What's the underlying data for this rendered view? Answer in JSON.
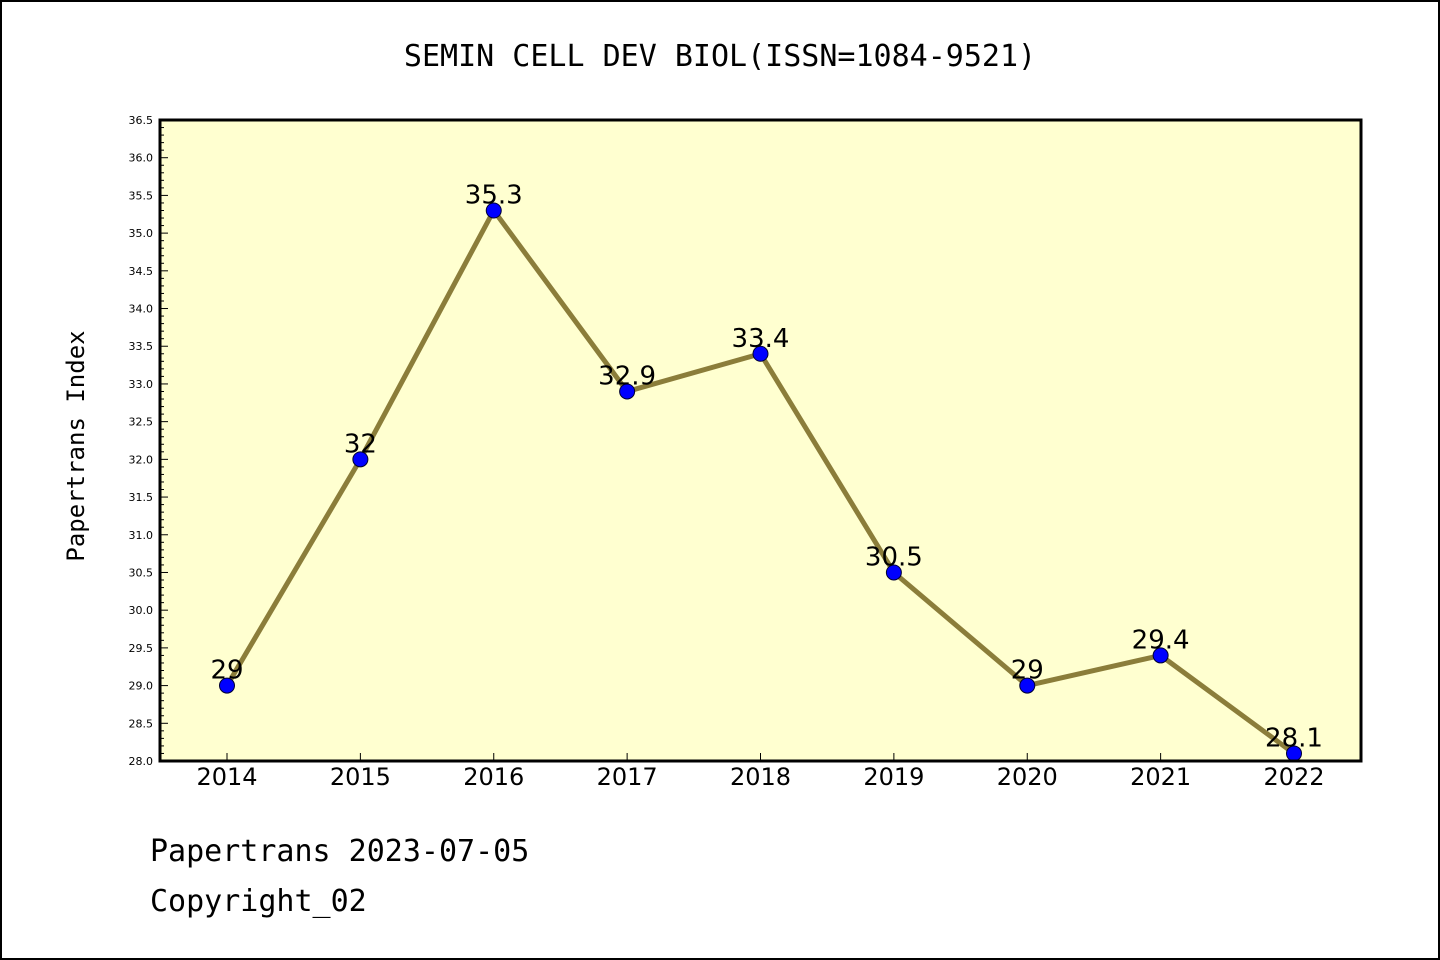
{
  "chart_data": {
    "type": "line",
    "title": "SEMIN CELL DEV BIOL(ISSN=1084-9521)",
    "xlabel": "",
    "ylabel": "Papertrans Index",
    "x": [
      "2014",
      "2015",
      "2016",
      "2017",
      "2018",
      "2019",
      "2020",
      "2021",
      "2022"
    ],
    "series": [
      {
        "values": [
          29,
          32,
          35.3,
          32.9,
          33.4,
          30.5,
          29,
          29.4,
          28.1
        ],
        "labels": [
          "29",
          "32",
          "35.3",
          "32.9",
          "33.4",
          "30.5",
          "29",
          "29.4",
          "28.1"
        ]
      }
    ],
    "ylim": [
      28.0,
      36.5
    ],
    "yticks": [
      "28.0",
      "28.5",
      "29.0",
      "29.5",
      "30.0",
      "30.5",
      "31.0",
      "31.5",
      "32.0",
      "32.5",
      "33.0",
      "33.5",
      "34.0",
      "34.5",
      "35.0",
      "35.5",
      "36.0",
      "36.5"
    ],
    "grid": false,
    "colors": {
      "plot_background": "#ffffd0",
      "line": "#8b7d3a",
      "marker": "#0000ff"
    }
  },
  "footer": {
    "date_line": "Papertrans 2023-07-05",
    "copyright": "Copyright_02"
  }
}
